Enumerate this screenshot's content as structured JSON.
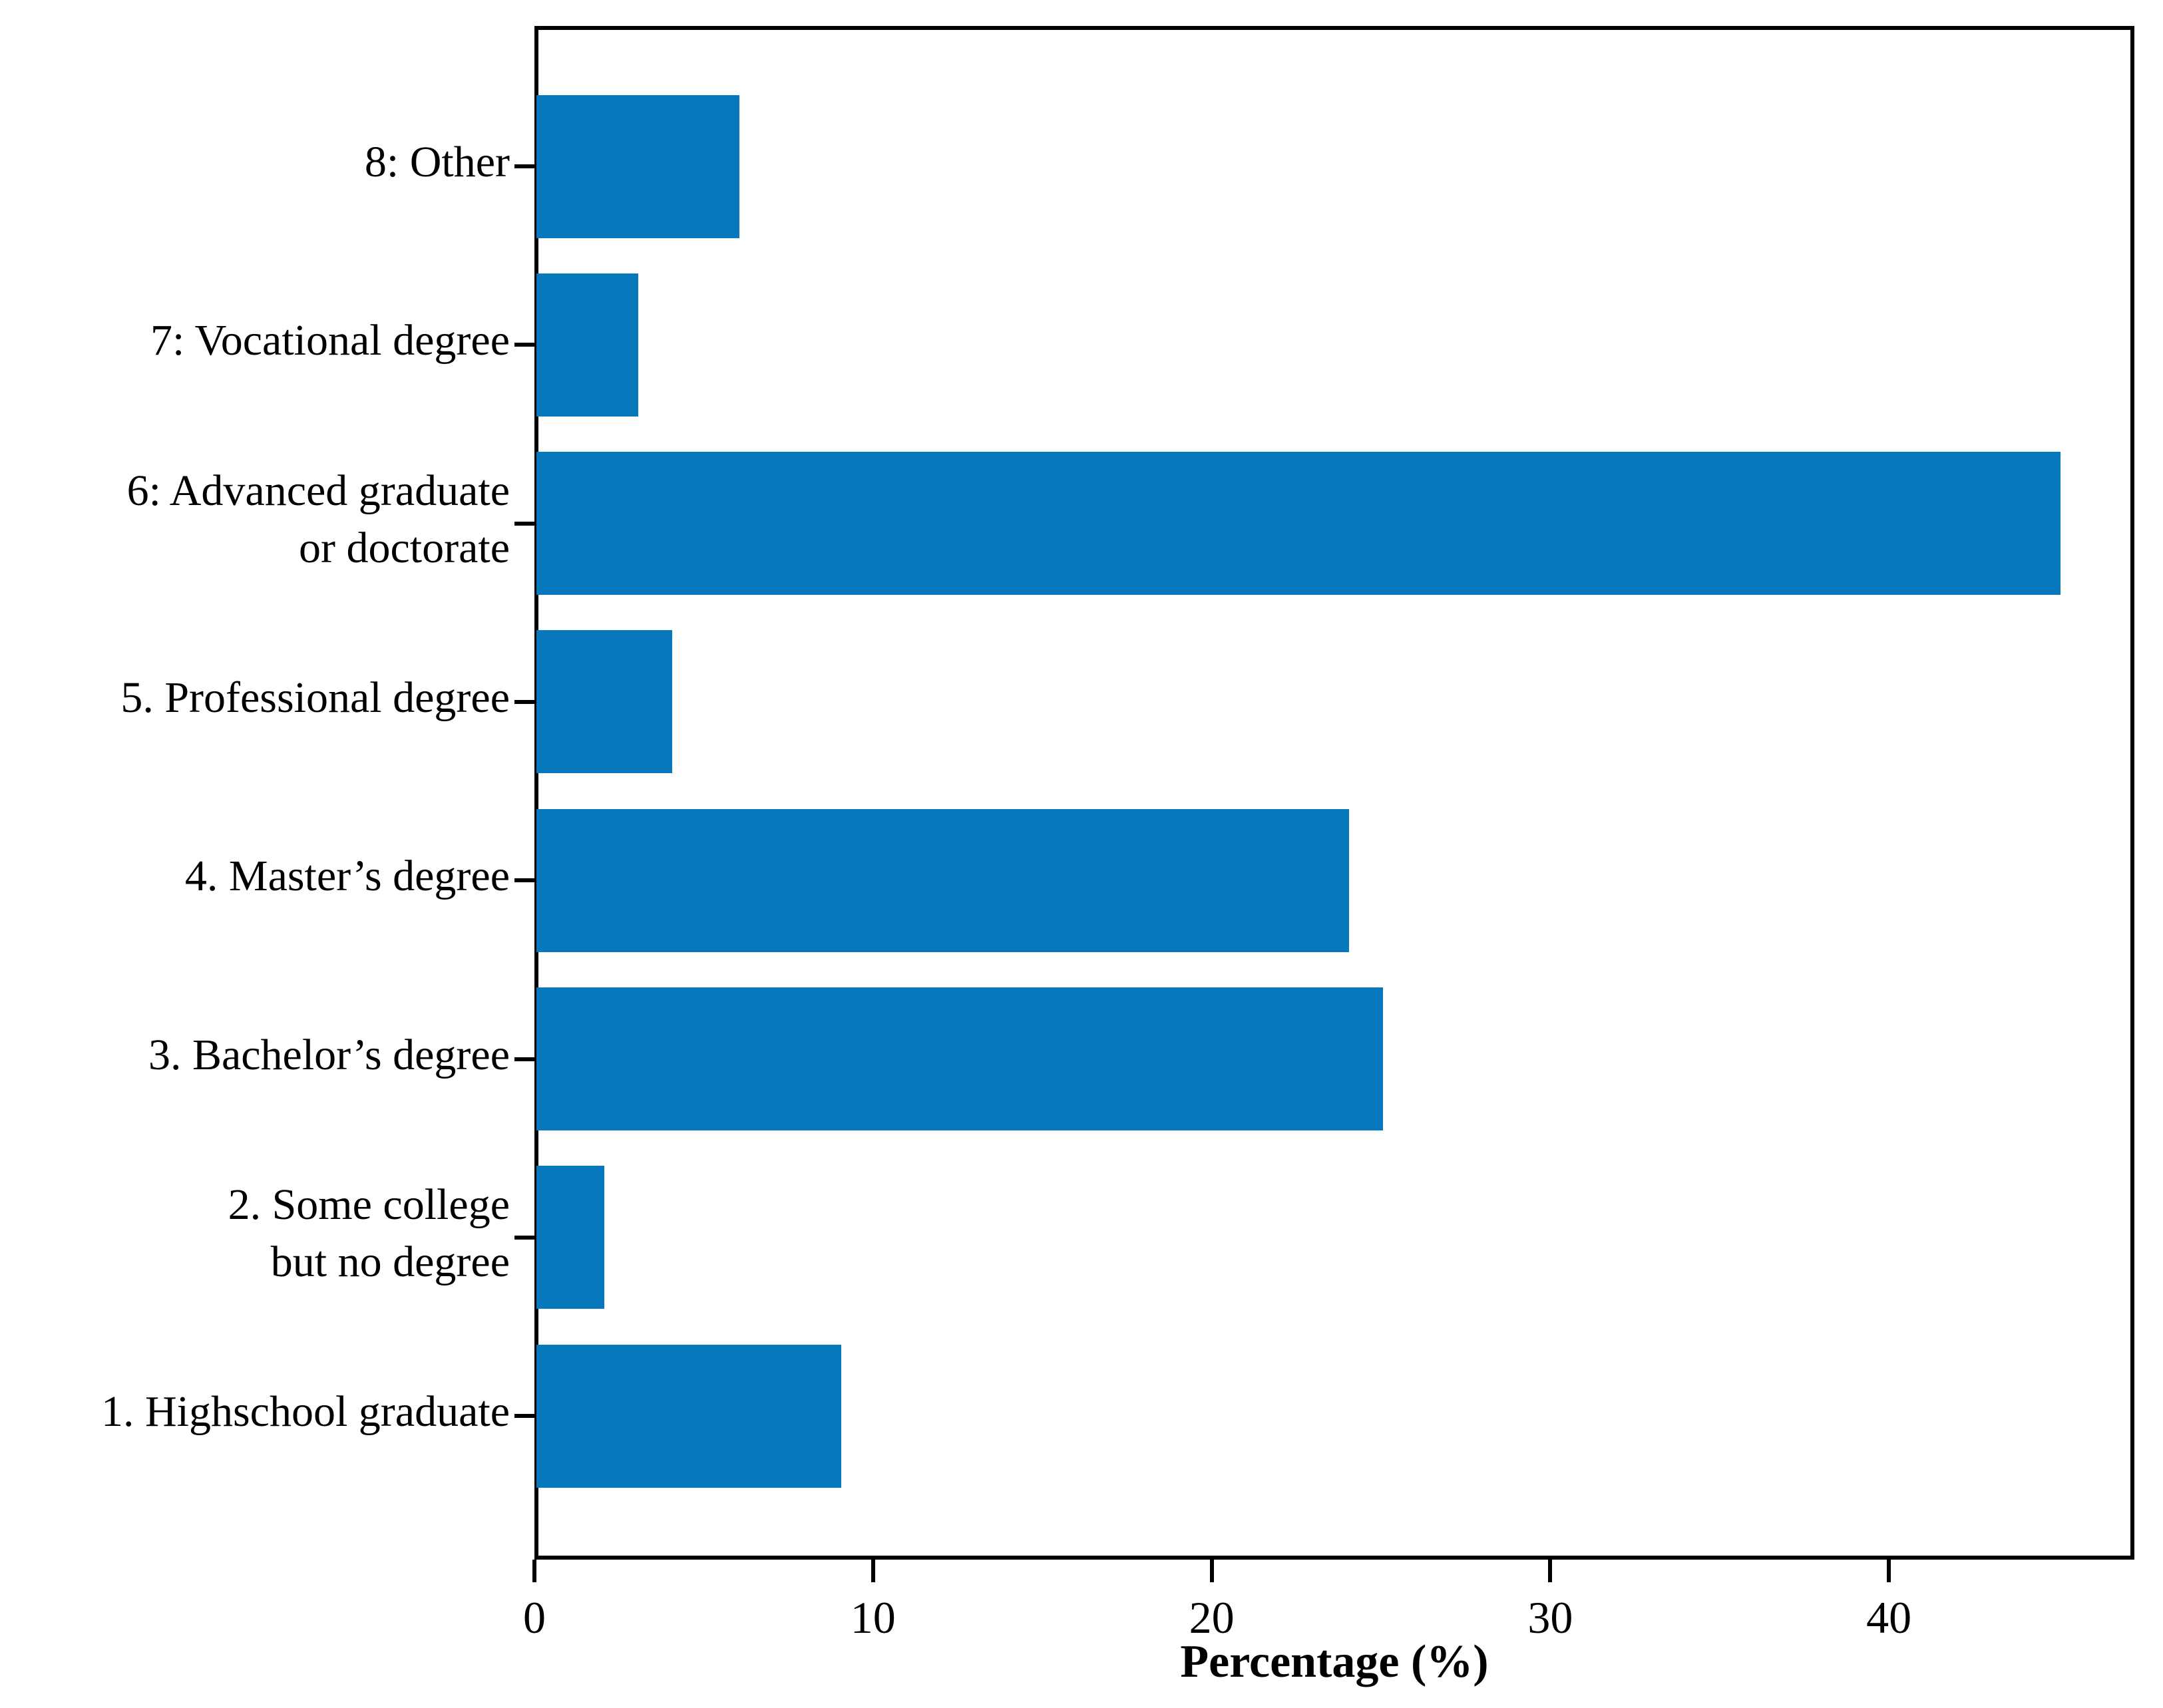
{
  "figure": {
    "background_color": "#ffffff",
    "bar_color": "#0778bb",
    "axis_color": "#000000",
    "text_color": "#000000"
  },
  "chart_data": {
    "type": "bar",
    "orientation": "horizontal",
    "title": "",
    "xlabel": "Percentage (%)",
    "ylabel": "",
    "categories_top_to_bottom": [
      "8: Other",
      "7: Vocational degree",
      "6: Advanced graduate\nor doctorate",
      "5. Professional degree",
      "4. Master’s degree",
      "3. Bachelor’s degree",
      "2. Some college\nbut no degree",
      "1. Highschool graduate"
    ],
    "values": [
      6,
      3,
      45,
      4,
      24,
      25,
      2,
      9
    ],
    "xlim": [
      0,
      47.25
    ],
    "xticks": [
      0,
      10,
      20,
      30,
      40
    ],
    "grid": false,
    "legend": null,
    "frame": "full-box"
  }
}
